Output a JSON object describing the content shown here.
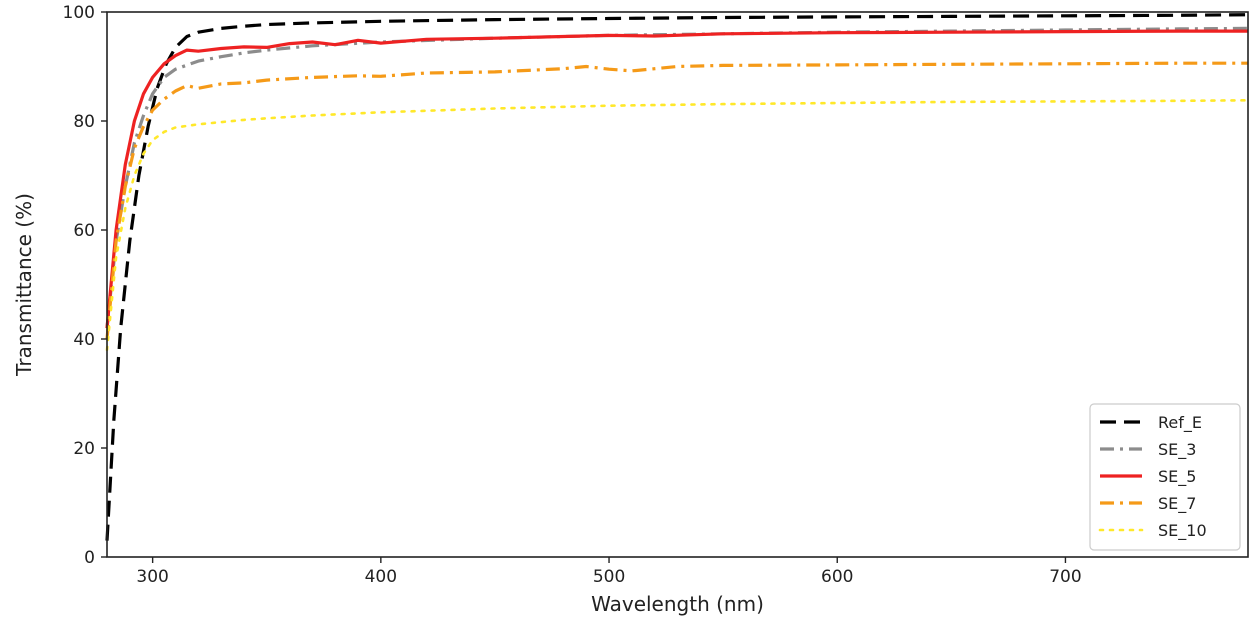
{
  "chart_data": {
    "type": "line",
    "title": "",
    "xlabel": "Wavelength (nm)",
    "ylabel": "Transmittance (%)",
    "xlim": [
      280,
      780
    ],
    "ylim": [
      0,
      100
    ],
    "xticks": [
      300,
      400,
      500,
      600,
      700
    ],
    "yticks": [
      0,
      20,
      40,
      60,
      80,
      100
    ],
    "grid": false,
    "legend_position": "bottom-right",
    "series": [
      {
        "name": "Ref_E",
        "color": "#000000",
        "style": "dashed",
        "x": [
          280,
          283,
          286,
          290,
          294,
          298,
          302,
          306,
          310,
          315,
          320,
          330,
          340,
          350,
          370,
          400,
          450,
          500,
          550,
          600,
          650,
          700,
          750,
          780
        ],
        "y": [
          3,
          25,
          42,
          58,
          70,
          79,
          86,
          90.5,
          93.5,
          95.5,
          96.3,
          97,
          97.4,
          97.7,
          98,
          98.3,
          98.6,
          98.8,
          99,
          99.1,
          99.2,
          99.3,
          99.4,
          99.5
        ]
      },
      {
        "name": "SE_3",
        "color": "#8c8c8c",
        "style": "dashdot",
        "x": [
          280,
          284,
          288,
          292,
          296,
          300,
          305,
          310,
          320,
          330,
          340,
          350,
          370,
          400,
          450,
          500,
          550,
          600,
          650,
          700,
          750,
          780
        ],
        "y": [
          42,
          58,
          68,
          76,
          81,
          85,
          88,
          89.5,
          91,
          91.8,
          92.5,
          93,
          93.8,
          94.5,
          95.2,
          95.7,
          96,
          96.3,
          96.5,
          96.7,
          96.9,
          97
        ]
      },
      {
        "name": "SE_5",
        "color": "#ee2222",
        "style": "solid",
        "x": [
          280,
          284,
          288,
          292,
          296,
          300,
          305,
          310,
          315,
          320,
          330,
          340,
          350,
          360,
          370,
          380,
          390,
          400,
          420,
          450,
          480,
          500,
          520,
          550,
          600,
          650,
          700,
          750,
          780
        ],
        "y": [
          42,
          60,
          72,
          80,
          85,
          88,
          90.5,
          92,
          93,
          92.8,
          93.3,
          93.6,
          93.5,
          94.2,
          94.5,
          94,
          94.8,
          94.3,
          95,
          95.2,
          95.5,
          95.7,
          95.6,
          96,
          96.2,
          96.3,
          96.4,
          96.5,
          96.5
        ]
      },
      {
        "name": "SE_7",
        "color": "#f59a18",
        "style": "dashdot",
        "x": [
          280,
          284,
          288,
          292,
          296,
          300,
          305,
          310,
          315,
          320,
          330,
          340,
          350,
          370,
          390,
          400,
          420,
          450,
          480,
          490,
          500,
          510,
          530,
          550,
          600,
          650,
          700,
          750,
          780
        ],
        "y": [
          40,
          58,
          68,
          75,
          79,
          82,
          84,
          85.5,
          86.5,
          86,
          86.8,
          87,
          87.5,
          88,
          88.3,
          88.2,
          88.8,
          89,
          89.6,
          90,
          89.5,
          89.2,
          90,
          90.2,
          90.3,
          90.4,
          90.5,
          90.6,
          90.6
        ]
      },
      {
        "name": "SE_10",
        "color": "#ffe82a",
        "style": "dotted",
        "x": [
          280,
          284,
          288,
          292,
          296,
          300,
          305,
          310,
          320,
          330,
          340,
          350,
          370,
          400,
          450,
          500,
          550,
          600,
          650,
          700,
          750,
          780
        ],
        "y": [
          38,
          55,
          64,
          70,
          74,
          76.5,
          78,
          78.8,
          79.4,
          79.8,
          80.2,
          80.5,
          81,
          81.6,
          82.3,
          82.8,
          83.1,
          83.3,
          83.5,
          83.6,
          83.7,
          83.8
        ]
      }
    ]
  }
}
